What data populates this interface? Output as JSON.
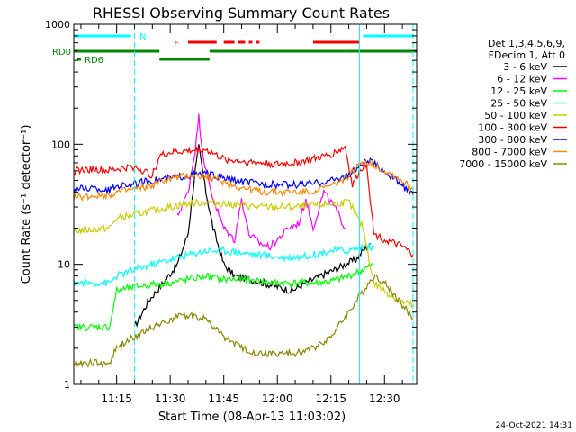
{
  "chart_data": {
    "type": "line",
    "title": "RHESSI Observing Summary Count Rates",
    "xlabel": "Start Time (08-Apr-13 11:03:02)",
    "ylabel": "Count Rate (s⁻¹ detector⁻¹)",
    "yscale": "log",
    "ylim": [
      1,
      1000
    ],
    "xlim": [
      "11:03",
      "12:39"
    ],
    "ytick_labels": [
      "1",
      "10",
      "100",
      "1000"
    ],
    "xtick_labels": [
      "11:15",
      "11:30",
      "11:45",
      "12:00",
      "12:15",
      "12:30"
    ],
    "footer_date": "24-Oct-2021 14:31",
    "legend": {
      "position": "right",
      "header": [
        "Det 1,3,4,5,6,9,",
        "FDecim 1, Att 0"
      ],
      "entries": [
        {
          "label": "3 - 6 keV",
          "color": "#000000"
        },
        {
          "label": "6 - 12 keV",
          "color": "#ff00ff"
        },
        {
          "label": "12 - 25 keV",
          "color": "#00ff00"
        },
        {
          "label": "25 - 50 keV",
          "color": "#00ffff"
        },
        {
          "label": "50 - 100 keV",
          "color": "#cccc00"
        },
        {
          "label": "100 - 300 keV",
          "color": "#ff0000"
        },
        {
          "label": "300 - 800 keV",
          "color": "#0000ff"
        },
        {
          "label": "800 - 7000 keV",
          "color": "#ff8800"
        },
        {
          "label": "7000 - 15000 keV",
          "color": "#888800"
        }
      ]
    },
    "flag_bars": [
      {
        "label": "N",
        "color": "#00ffff",
        "segments": [
          [
            "11:03",
            "11:19"
          ],
          [
            "12:24",
            "12:38"
          ]
        ]
      },
      {
        "label": "F",
        "color": "#ff0000",
        "segments": [
          [
            "11:35",
            "11:43"
          ],
          [
            "11:45",
            "11:48"
          ],
          [
            "11:49",
            "11:51"
          ],
          [
            "11:52",
            "11:53"
          ],
          [
            "11:54",
            "11:55"
          ],
          [
            "12:10",
            "12:23"
          ]
        ]
      },
      {
        "label": "RD0",
        "color": "#008800",
        "segments": [
          [
            "11:03",
            "11:27"
          ],
          [
            "11:41",
            "12:19"
          ],
          [
            "12:19",
            "12:39"
          ]
        ]
      },
      {
        "label": "RD6",
        "color": "#008800",
        "segments": [
          [
            "11:04",
            "11:05"
          ],
          [
            "11:27",
            "11:41"
          ]
        ]
      }
    ],
    "markers": [
      {
        "x": "11:20",
        "color": "#00ffff",
        "style": "dashed"
      },
      {
        "x": "12:23",
        "color": "#00ffff",
        "style": "solid"
      },
      {
        "x": "12:38",
        "color": "#00ffff",
        "style": "dashed"
      }
    ],
    "series": [
      {
        "name": "3 - 6 keV",
        "color": "#000000",
        "x": [
          "11:20",
          "11:24",
          "11:28",
          "11:32",
          "11:35",
          "11:37",
          "11:38",
          "11:40",
          "11:42",
          "11:45",
          "11:48",
          "11:52",
          "11:56",
          "12:00",
          "12:04",
          "12:08",
          "12:12",
          "12:16",
          "12:19",
          "12:22",
          "12:24",
          "12:26"
        ],
        "values": [
          3,
          5,
          7,
          10,
          18,
          60,
          95,
          40,
          20,
          10,
          8,
          7.5,
          7,
          6.5,
          6,
          7,
          8,
          9,
          10,
          11,
          13,
          15
        ]
      },
      {
        "name": "6 - 12 keV",
        "color": "#ff00ff",
        "x": [
          "11:32",
          "11:35",
          "11:37",
          "11:38",
          "11:39",
          "11:40",
          "11:42",
          "11:45",
          "11:48",
          "11:50",
          "11:52",
          "11:55",
          "11:58",
          "12:00",
          "12:03",
          "12:06",
          "12:08",
          "12:10",
          "12:13",
          "12:16",
          "12:19"
        ],
        "values": [
          25,
          40,
          90,
          170,
          90,
          60,
          35,
          20,
          16,
          35,
          18,
          15,
          14,
          16,
          20,
          22,
          35,
          20,
          40,
          30,
          20
        ]
      },
      {
        "name": "12 - 25 keV",
        "color": "#00ff00",
        "x": [
          "11:03",
          "11:08",
          "11:13",
          "11:15",
          "11:20",
          "11:25",
          "11:30",
          "11:35",
          "11:40",
          "11:45",
          "11:50",
          "11:55",
          "12:00",
          "12:05",
          "12:10",
          "12:15",
          "12:20",
          "12:24",
          "12:27"
        ],
        "values": [
          3,
          3,
          3,
          6,
          6.5,
          6.8,
          7,
          7.5,
          8,
          7.5,
          7.5,
          7.2,
          7,
          7,
          7,
          7.2,
          8,
          9,
          10
        ]
      },
      {
        "name": "25 - 50 keV",
        "color": "#00ffff",
        "x": [
          "11:03",
          "11:08",
          "11:13",
          "11:15",
          "11:20",
          "11:25",
          "11:30",
          "11:35",
          "11:40",
          "11:45",
          "11:50",
          "11:55",
          "12:00",
          "12:05",
          "12:10",
          "12:15",
          "12:20",
          "12:24",
          "12:27"
        ],
        "values": [
          7,
          7,
          7,
          8,
          9,
          10,
          11,
          12,
          13,
          13,
          12.5,
          12,
          11.5,
          11.5,
          12,
          13,
          13,
          14,
          14
        ]
      },
      {
        "name": "50 - 100 keV",
        "color": "#cccc00",
        "x": [
          "11:03",
          "11:08",
          "11:13",
          "11:15",
          "11:20",
          "11:25",
          "11:30",
          "11:35",
          "11:40",
          "11:45",
          "11:50",
          "11:55",
          "12:00",
          "12:05",
          "12:10",
          "12:15",
          "12:20",
          "12:24",
          "12:27",
          "12:30",
          "12:34",
          "12:38"
        ],
        "values": [
          19,
          19.5,
          20,
          24,
          26,
          28,
          30,
          32,
          33,
          32,
          31,
          30,
          30,
          30,
          31,
          32,
          33,
          20,
          7,
          6,
          5,
          4.5
        ]
      },
      {
        "name": "100 - 300 keV",
        "color": "#ff0000",
        "x": [
          "11:03",
          "11:08",
          "11:13",
          "11:15",
          "11:20",
          "11:25",
          "11:27",
          "11:30",
          "11:35",
          "11:40",
          "11:45",
          "11:50",
          "11:55",
          "12:00",
          "12:05",
          "12:10",
          "12:15",
          "12:19",
          "12:21",
          "12:23",
          "12:25",
          "12:27",
          "12:30",
          "12:35",
          "12:38"
        ],
        "values": [
          60,
          62,
          60,
          62,
          65,
          55,
          80,
          85,
          88,
          90,
          75,
          72,
          70,
          68,
          70,
          75,
          82,
          95,
          45,
          60,
          70,
          18,
          16,
          14,
          12
        ]
      },
      {
        "name": "300 - 800 keV",
        "color": "#0000ff",
        "x": [
          "11:03",
          "11:08",
          "11:13",
          "11:15",
          "11:20",
          "11:25",
          "11:30",
          "11:35",
          "11:40",
          "11:45",
          "11:50",
          "11:55",
          "12:00",
          "12:05",
          "12:10",
          "12:15",
          "12:20",
          "12:24",
          "12:26",
          "12:30",
          "12:34",
          "12:38"
        ],
        "values": [
          42,
          43,
          41,
          45,
          47,
          50,
          52,
          55,
          57,
          52,
          49,
          47,
          46,
          46,
          47,
          50,
          55,
          70,
          72,
          60,
          48,
          38
        ]
      },
      {
        "name": "800 - 7000 keV",
        "color": "#ff8800",
        "x": [
          "11:03",
          "11:08",
          "11:13",
          "11:15",
          "11:20",
          "11:25",
          "11:28",
          "11:32",
          "11:36",
          "11:40",
          "11:44",
          "11:48",
          "11:52",
          "11:56",
          "12:00",
          "12:04",
          "12:08",
          "12:12",
          "12:16",
          "12:20",
          "12:24",
          "12:26",
          "12:30",
          "12:34",
          "12:38"
        ],
        "values": [
          36,
          37,
          38,
          40,
          42,
          45,
          50,
          53,
          55,
          54,
          50,
          45,
          42,
          40,
          40,
          40,
          40,
          42,
          46,
          55,
          72,
          70,
          60,
          52,
          42
        ]
      },
      {
        "name": "7000 - 15000 keV",
        "color": "#888800",
        "x": [
          "11:03",
          "11:08",
          "11:13",
          "11:15",
          "11:20",
          "11:25",
          "11:30",
          "11:35",
          "11:40",
          "11:45",
          "11:50",
          "11:55",
          "12:00",
          "12:05",
          "12:10",
          "12:15",
          "12:20",
          "12:24",
          "12:27",
          "12:30",
          "12:34",
          "12:38"
        ],
        "values": [
          1.5,
          1.5,
          1.5,
          2,
          2.5,
          3,
          3.5,
          3.8,
          3.5,
          2.5,
          2,
          1.8,
          1.8,
          1.8,
          2,
          2.5,
          4,
          6,
          8,
          7,
          5,
          3.5
        ]
      }
    ]
  }
}
